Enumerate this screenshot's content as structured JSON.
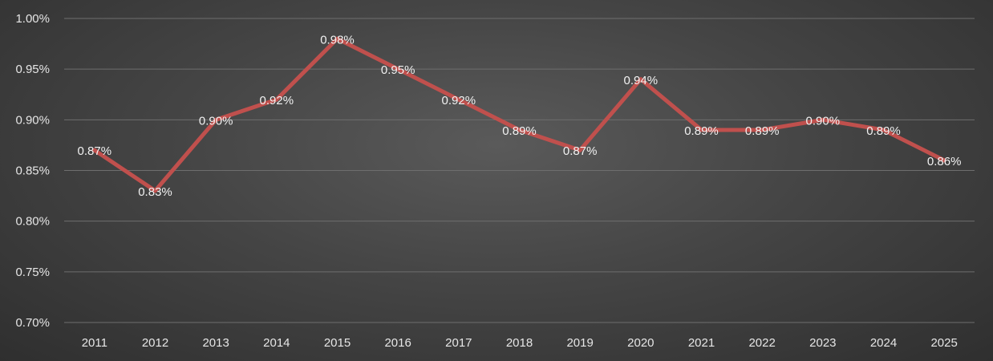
{
  "chart_data": {
    "type": "line",
    "title": "",
    "xlabel": "",
    "ylabel": "",
    "categories": [
      "2011",
      "2012",
      "2013",
      "2014",
      "2015",
      "2016",
      "2017",
      "2018",
      "2019",
      "2020",
      "2021",
      "2022",
      "2023",
      "2024",
      "2025"
    ],
    "series": [
      {
        "values": [
          0.87,
          0.83,
          0.9,
          0.92,
          0.98,
          0.95,
          0.92,
          0.89,
          0.87,
          0.94,
          0.89,
          0.89,
          0.9,
          0.89,
          0.86
        ],
        "labels": [
          "0.87%",
          "0.83%",
          "0.90%",
          "0.92%",
          "0.98%",
          "0.95%",
          "0.92%",
          "0.89%",
          "0.87%",
          "0.94%",
          "0.89%",
          "0.89%",
          "0.90%",
          "0.89%",
          "0.86%"
        ],
        "color": "#c0504d"
      }
    ],
    "ylim": [
      0.7,
      1.0
    ],
    "yticks": [
      0.7,
      0.75,
      0.8,
      0.85,
      0.9,
      0.95,
      1.0
    ],
    "ytick_labels": [
      "0.70%",
      "0.75%",
      "0.80%",
      "0.85%",
      "0.90%",
      "0.95%",
      "1.00%"
    ],
    "grid": true,
    "legend": "none"
  }
}
